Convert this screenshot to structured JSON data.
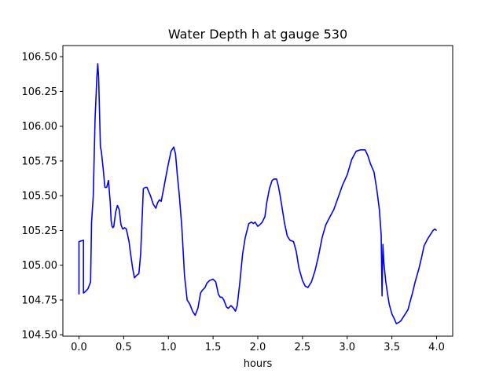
{
  "chart_data": {
    "type": "line",
    "title": "Water Depth h at gauge 530",
    "xlabel": "hours",
    "ylabel": "",
    "xlim": [
      -0.18,
      4.18
    ],
    "ylim": [
      104.49,
      106.58
    ],
    "xticks": [
      0.0,
      0.5,
      1.0,
      1.5,
      2.0,
      2.5,
      3.0,
      3.5,
      4.0
    ],
    "xtick_labels": [
      "0.0",
      "0.5",
      "1.0",
      "1.5",
      "2.0",
      "2.5",
      "3.0",
      "3.5",
      "4.0"
    ],
    "yticks": [
      104.5,
      104.75,
      105.0,
      105.25,
      105.5,
      105.75,
      106.0,
      106.25,
      106.5
    ],
    "ytick_labels": [
      "104.50",
      "104.75",
      "105.00",
      "105.25",
      "105.50",
      "105.75",
      "106.00",
      "106.25",
      "106.50"
    ],
    "grid": false,
    "series": [
      {
        "color": "#0000ff",
        "x": [
          0.0,
          0.0,
          0.05,
          0.05,
          0.07,
          0.1,
          0.13,
          0.14,
          0.14,
          0.16,
          0.18,
          0.2,
          0.21,
          0.22,
          0.23,
          0.24,
          0.25,
          0.27,
          0.29,
          0.31,
          0.33,
          0.35,
          0.36,
          0.37,
          0.38,
          0.39,
          0.41,
          0.43,
          0.45,
          0.47,
          0.49,
          0.51,
          0.53,
          0.55,
          0.56,
          0.57,
          0.58,
          0.6,
          0.62,
          0.65,
          0.67,
          0.69,
          0.72,
          0.74,
          0.76,
          0.78,
          0.8,
          0.83,
          0.86,
          0.88,
          0.9,
          0.92,
          0.95,
          0.97,
          1.0,
          1.03,
          1.06,
          1.08,
          1.1,
          1.12,
          1.15,
          1.18,
          1.21,
          1.24,
          1.27,
          1.3,
          1.33,
          1.36,
          1.38,
          1.41,
          1.43,
          1.46,
          1.5,
          1.53,
          1.56,
          1.58,
          1.6,
          1.62,
          1.65,
          1.67,
          1.7,
          1.73,
          1.75,
          1.77,
          1.8,
          1.83,
          1.86,
          1.9,
          1.93,
          1.95,
          1.97,
          2.0,
          2.02,
          2.05,
          2.08,
          2.1,
          2.13,
          2.16,
          2.18,
          2.21,
          2.23,
          2.25,
          2.27,
          2.3,
          2.33,
          2.36,
          2.4,
          2.43,
          2.46,
          2.5,
          2.53,
          2.56,
          2.6,
          2.64,
          2.68,
          2.72,
          2.76,
          2.8,
          2.85,
          2.9,
          2.95,
          3.0,
          3.05,
          3.1,
          3.15,
          3.2,
          3.23,
          3.26,
          3.3,
          3.33,
          3.36,
          3.38,
          3.39,
          3.39,
          3.4,
          3.4,
          3.41,
          3.43,
          3.45,
          3.47,
          3.5,
          3.53,
          3.55,
          3.58,
          3.6,
          3.63,
          3.65,
          3.68,
          3.7,
          3.73,
          3.76,
          3.8,
          3.83,
          3.86,
          3.9,
          3.93,
          3.96,
          3.98,
          4.0
        ],
        "y": [
          104.79,
          105.17,
          105.18,
          104.8,
          104.81,
          104.83,
          104.88,
          105.28,
          105.3,
          105.5,
          106.05,
          106.35,
          106.45,
          106.35,
          106.1,
          105.85,
          105.82,
          105.7,
          105.56,
          105.56,
          105.61,
          105.45,
          105.32,
          105.28,
          105.27,
          105.28,
          105.38,
          105.43,
          105.4,
          105.29,
          105.26,
          105.27,
          105.26,
          105.2,
          105.17,
          105.12,
          105.07,
          104.98,
          104.91,
          104.93,
          104.94,
          105.08,
          105.55,
          105.56,
          105.56,
          105.53,
          105.5,
          105.44,
          105.41,
          105.45,
          105.47,
          105.46,
          105.56,
          105.63,
          105.73,
          105.82,
          105.85,
          105.8,
          105.65,
          105.52,
          105.28,
          104.93,
          104.75,
          104.72,
          104.67,
          104.64,
          104.69,
          104.8,
          104.82,
          104.84,
          104.87,
          104.89,
          104.9,
          104.88,
          104.79,
          104.77,
          104.77,
          104.75,
          104.7,
          104.69,
          104.71,
          104.69,
          104.67,
          104.71,
          104.88,
          105.08,
          105.2,
          105.3,
          105.31,
          105.3,
          105.31,
          105.28,
          105.29,
          105.31,
          105.35,
          105.45,
          105.55,
          105.61,
          105.62,
          105.62,
          105.57,
          105.5,
          105.42,
          105.3,
          105.21,
          105.18,
          105.17,
          105.1,
          104.98,
          104.89,
          104.85,
          104.84,
          104.88,
          104.96,
          105.07,
          105.2,
          105.29,
          105.34,
          105.4,
          105.49,
          105.58,
          105.65,
          105.76,
          105.82,
          105.83,
          105.83,
          105.79,
          105.73,
          105.67,
          105.55,
          105.4,
          105.22,
          104.78,
          104.79,
          105.15,
          105.14,
          105.02,
          104.89,
          104.8,
          104.72,
          104.65,
          104.61,
          104.58,
          104.59,
          104.6,
          104.63,
          104.65,
          104.68,
          104.73,
          104.8,
          104.88,
          104.97,
          105.05,
          105.14,
          105.19,
          105.22,
          105.25,
          105.26,
          105.25
        ]
      }
    ]
  }
}
